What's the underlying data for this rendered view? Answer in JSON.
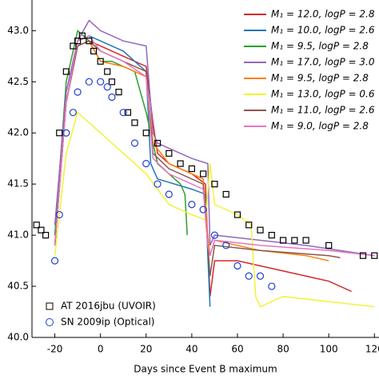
{
  "chart_data": {
    "type": "line",
    "x_label": "Days since Event B maximum",
    "xlim": [
      -30,
      122
    ],
    "xticks": [
      -20,
      0,
      20,
      40,
      60,
      80,
      100,
      120
    ],
    "ylim": [
      40,
      43.3
    ],
    "yticks": [
      {
        "value": 40,
        "label": "40.0"
      },
      40.5,
      {
        "value": 41,
        "label": "41.0"
      },
      41.5,
      {
        "value": 42,
        "label": "42.0"
      },
      42.5,
      {
        "value": 43,
        "label": "43.0"
      }
    ],
    "legend": "upper right",
    "series": [
      {
        "name": "M₁ = 12.0, logP = 2.8",
        "color": "#d62728",
        "x": [
          -20,
          -15,
          -10,
          -5,
          0,
          10,
          20,
          23,
          25,
          30,
          40,
          46,
          47,
          48,
          50,
          60,
          80,
          100,
          110
        ],
        "values": [
          40.9,
          42.3,
          42.85,
          42.9,
          42.85,
          42.75,
          42.65,
          42.1,
          41.8,
          41.7,
          41.6,
          41.5,
          40.9,
          40.4,
          40.75,
          40.75,
          40.65,
          40.55,
          40.45
        ]
      },
      {
        "name": "M₁ = 10.0, logP = 2.6",
        "color": "#1f77b4",
        "x": [
          -20,
          -15,
          -10,
          -5,
          0,
          10,
          20,
          22,
          25,
          40,
          46,
          47,
          48
        ],
        "values": [
          41.0,
          42.4,
          42.9,
          42.95,
          42.9,
          42.8,
          42.6,
          41.7,
          41.55,
          41.45,
          41.4,
          40.8,
          40.3
        ]
      },
      {
        "name": "M₁ = 9.5, logP = 2.8",
        "color": "#2ca02c",
        "x": [
          -20,
          -15,
          -10,
          -5,
          0,
          5,
          15,
          20,
          25,
          35,
          37,
          38
        ],
        "values": [
          41.0,
          42.5,
          43.0,
          42.9,
          42.7,
          42.7,
          42.6,
          42.2,
          41.7,
          41.5,
          41.4,
          41.0
        ]
      },
      {
        "name": "M₁ = 17.0, logP = 3.0",
        "color": "#9467bd",
        "x": [
          -20,
          -15,
          -10,
          -5,
          0,
          10,
          20,
          23,
          25,
          40,
          47,
          48,
          50,
          70,
          90,
          120
        ],
        "values": [
          41.1,
          42.4,
          42.9,
          43.1,
          43.0,
          42.9,
          42.85,
          42.0,
          41.9,
          41.75,
          41.7,
          40.9,
          41.0,
          40.95,
          40.9,
          40.8
        ]
      },
      {
        "name": "M₁ = 9.5, logP = 2.8",
        "color": "#ff7f0e",
        "x": [
          -20,
          -15,
          -10,
          -5,
          0,
          10,
          20,
          23,
          30,
          45,
          47,
          48,
          50,
          70,
          90,
          100
        ],
        "values": [
          40.9,
          42.3,
          42.85,
          42.9,
          42.7,
          42.65,
          42.55,
          41.9,
          41.7,
          41.55,
          41.0,
          40.8,
          40.95,
          40.85,
          40.8,
          40.75
        ]
      },
      {
        "name": "M₁ = 13.0, logP = 0.6",
        "color": "#f2f23a",
        "x": [
          -20,
          -15,
          -10,
          -5,
          0,
          10,
          20,
          30,
          40,
          46,
          48,
          50,
          60,
          66,
          68,
          70,
          80,
          100,
          120
        ],
        "values": [
          40.8,
          41.8,
          42.2,
          42.1,
          42.0,
          41.8,
          41.6,
          41.3,
          41.2,
          41.15,
          41.7,
          41.3,
          41.2,
          41.1,
          40.4,
          40.3,
          40.4,
          40.35,
          40.3
        ]
      },
      {
        "name": "M₁ = 11.0, logP = 2.6",
        "color": "#8c564b",
        "x": [
          -20,
          -15,
          -10,
          -5,
          0,
          10,
          20,
          23,
          30,
          45,
          47,
          48,
          50,
          70,
          100,
          105
        ],
        "values": [
          40.9,
          42.3,
          42.85,
          42.9,
          42.8,
          42.7,
          42.6,
          41.8,
          41.65,
          41.5,
          40.9,
          40.6,
          40.9,
          40.85,
          40.8,
          40.78
        ]
      },
      {
        "name": "M₁ = 9.0, logP = 2.8",
        "color": "#e377c2",
        "x": [
          -20,
          -15,
          -10,
          -5,
          0,
          10,
          20,
          23,
          30,
          45,
          47,
          48,
          50,
          70,
          100,
          120
        ],
        "values": [
          40.9,
          42.3,
          42.9,
          42.95,
          42.8,
          42.7,
          42.55,
          41.75,
          41.6,
          41.45,
          40.9,
          40.8,
          40.95,
          40.9,
          40.85,
          40.8
        ]
      },
      {
        "name": "AT 2016jbu (UVOIR)",
        "color": "#000000",
        "marker": "square",
        "x": [
          -28,
          -26,
          -24,
          -18,
          -15,
          -12,
          -10,
          -8,
          -5,
          -3,
          0,
          3,
          5,
          8,
          12,
          15,
          20,
          25,
          30,
          35,
          40,
          45,
          50,
          55,
          60,
          65,
          70,
          75,
          80,
          85,
          90,
          100,
          115,
          120
        ],
        "values": [
          41.1,
          41.05,
          41.0,
          42.0,
          42.6,
          42.85,
          42.9,
          42.95,
          42.9,
          42.8,
          42.7,
          42.6,
          42.5,
          42.4,
          42.2,
          42.1,
          42.0,
          41.9,
          41.8,
          41.7,
          41.65,
          41.6,
          41.5,
          41.4,
          41.2,
          41.1,
          41.05,
          41.0,
          40.95,
          40.95,
          40.95,
          40.9,
          40.8,
          40.8
        ]
      },
      {
        "name": "SN 2009ip (Optical)",
        "color": "#1f3fd6",
        "marker": "circle",
        "x": [
          -20,
          -18,
          -15,
          -12,
          -10,
          -5,
          0,
          3,
          5,
          10,
          15,
          20,
          25,
          30,
          40,
          45,
          50,
          55,
          60,
          65,
          70,
          75
        ],
        "values": [
          40.75,
          41.2,
          42.0,
          42.2,
          42.4,
          42.5,
          42.5,
          42.45,
          42.35,
          42.2,
          41.9,
          41.7,
          41.5,
          41.4,
          41.3,
          41.25,
          41.0,
          40.9,
          40.7,
          40.6,
          40.6,
          40.5
        ]
      }
    ]
  }
}
